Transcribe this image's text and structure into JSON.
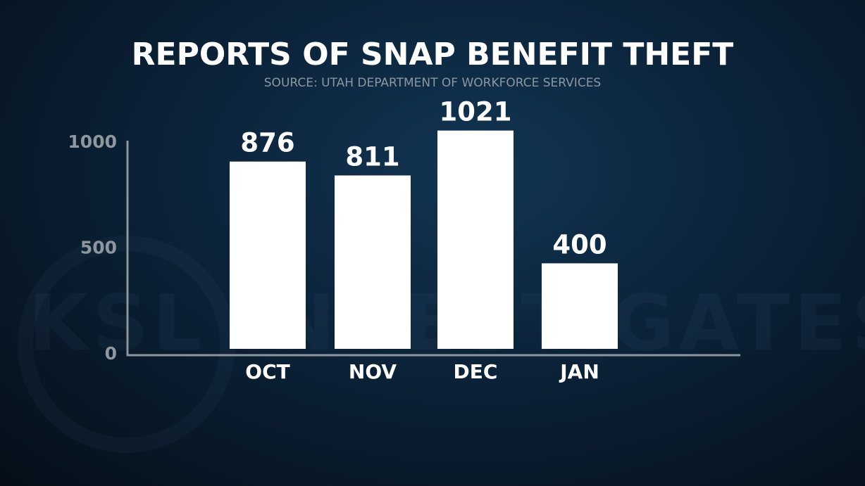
{
  "logo": {
    "watermark": "KSL INVESTIGATES"
  },
  "chart_data": {
    "type": "bar",
    "title": "REPORTS OF SNAP BENEFIT THEFT",
    "subtitle": "SOURCE: UTAH DEPARTMENT OF WORKFORCE SERVICES",
    "categories": [
      "OCT",
      "NOV",
      "DEC",
      "JAN"
    ],
    "values": [
      876,
      811,
      1021,
      400
    ],
    "data_labels": [
      "876",
      "811",
      "1021",
      "400"
    ],
    "yticks": [
      0,
      500,
      1000
    ],
    "ytick_labels": [
      "0",
      "500",
      "1000"
    ],
    "ylim": [
      0,
      1000
    ],
    "xlabel": "",
    "ylabel": "",
    "grid": false,
    "colors": {
      "bar": "#ffffff",
      "background": "#0b2238",
      "axis": "#8e969e"
    }
  }
}
